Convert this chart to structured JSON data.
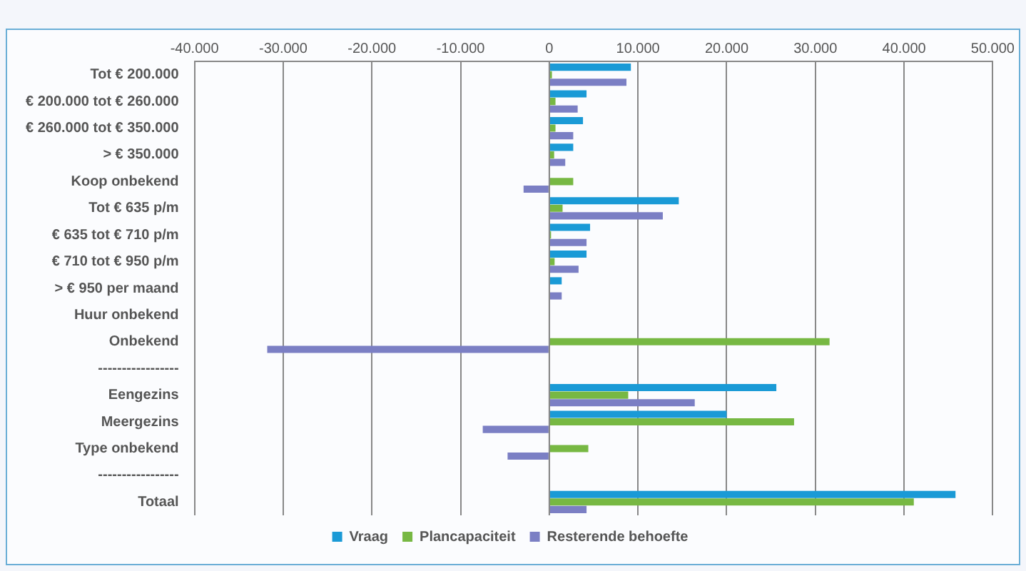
{
  "chart_data": {
    "type": "bar",
    "orientation": "horizontal",
    "categories": [
      "Tot € 200.000",
      "€ 200.000 tot € 260.000",
      "€ 260.000 tot € 350.000",
      "> € 350.000",
      "Koop onbekend",
      "Tot € 635 p/m",
      "€ 635 tot € 710 p/m",
      "€ 710 tot € 950 p/m",
      "> € 950 per maand",
      "Huur onbekend",
      "Onbekend",
      "-----------------",
      "Eengezins",
      "Meergezins",
      "Type onbekend",
      "-----------------",
      "Totaal"
    ],
    "series": [
      {
        "name": "Vraag",
        "color": "#1a9ad6",
        "values": [
          9200,
          4200,
          3800,
          2700,
          0,
          14600,
          4600,
          4200,
          1400,
          0,
          0,
          null,
          25600,
          20000,
          0,
          null,
          45800
        ]
      },
      {
        "name": "Plancapaciteit",
        "color": "#77b843",
        "values": [
          300,
          700,
          700,
          550,
          2700,
          1500,
          200,
          600,
          0,
          0,
          31600,
          null,
          8900,
          27600,
          4400,
          null,
          41100
        ]
      },
      {
        "name": "Resterende behoefte",
        "color": "#7b7fc4",
        "values": [
          8700,
          3200,
          2700,
          1800,
          -2900,
          12800,
          4200,
          3300,
          1400,
          0,
          -31800,
          null,
          16400,
          -7500,
          -4700,
          null,
          4200
        ]
      }
    ],
    "xlim": [
      -40000,
      50000
    ],
    "xticks": [
      {
        "value": -40000,
        "label": "-40.000"
      },
      {
        "value": -30000,
        "label": "-30.000"
      },
      {
        "value": -20000,
        "label": "-20.000"
      },
      {
        "value": -10000,
        "label": "-10.000"
      },
      0,
      {
        "value": 10000,
        "label": "10.000"
      },
      {
        "value": 20000,
        "label": "20.000"
      },
      {
        "value": 30000,
        "label": "30.000"
      },
      {
        "value": 40000,
        "label": "40.000"
      },
      {
        "value": 50000,
        "label": "50.000"
      }
    ],
    "grid": "x",
    "legend": "bottom"
  }
}
